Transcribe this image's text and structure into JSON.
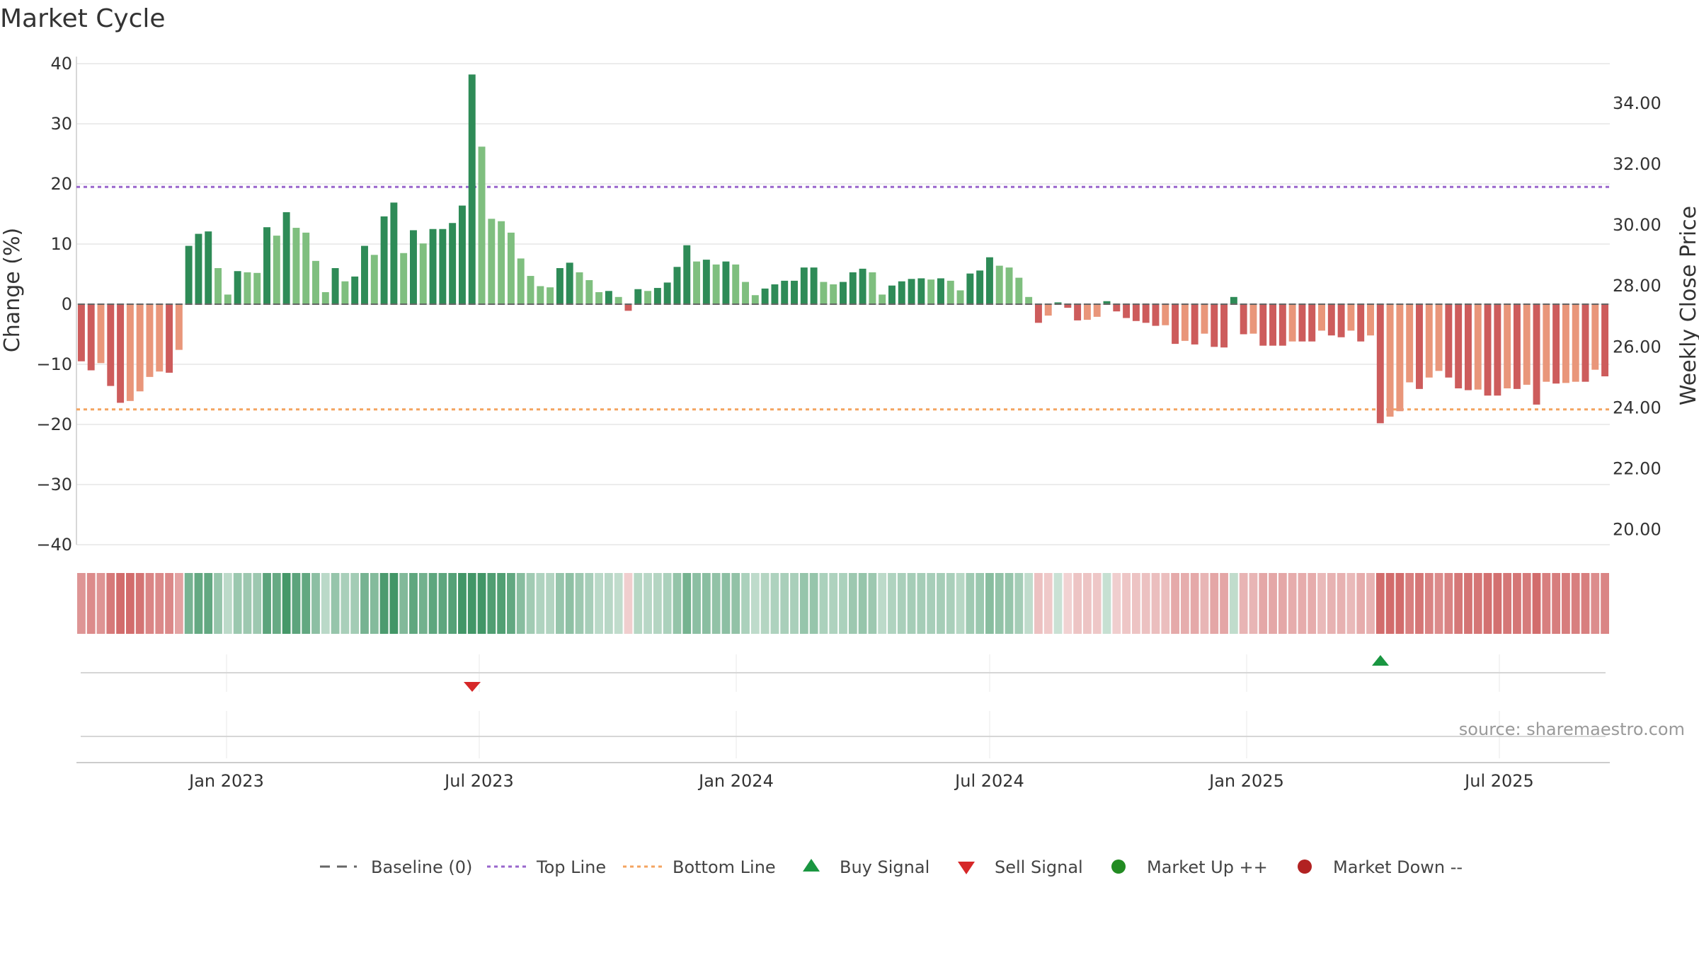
{
  "chart_data": {
    "type": "bar",
    "title": "Market Cycle",
    "ylabel": "Change (%)",
    "y2label": "Weekly Close Price",
    "ylim": [
      -40,
      40
    ],
    "y2lim": [
      19.5,
      35.3
    ],
    "yticks": [
      "40",
      "30",
      "20",
      "10",
      "0",
      "−10",
      "−20",
      "−30",
      "−40"
    ],
    "y2ticks": [
      "34.00",
      "32.00",
      "30.00",
      "28.00",
      "26.00",
      "24.00",
      "22.00",
      "20.00"
    ],
    "xticks": [
      "Jan 2023",
      "Jul 2023",
      "Jan 2024",
      "Jul 2024",
      "Jan 2025",
      "Jul 2025"
    ],
    "grid": true,
    "top_line": 19.5,
    "bottom_line": -17.5,
    "baseline": 0,
    "bar_colors": {
      "up_strong": "#2e8b57",
      "up_weak": "#7fbf7f",
      "down_strong": "#cd5c5c",
      "down_weak": "#e9967a"
    },
    "values": [
      -9.5,
      -11,
      -9.8,
      -13.6,
      -16.4,
      -16.1,
      -14.5,
      -12.1,
      -11.2,
      -11.4,
      -7.6,
      9.7,
      11.7,
      12.1,
      6,
      1.6,
      5.5,
      5.3,
      5.2,
      12.8,
      11.4,
      15.3,
      12.7,
      11.9,
      7.2,
      2,
      6,
      3.8,
      4.6,
      9.7,
      8.2,
      14.6,
      16.9,
      8.5,
      12.3,
      10.1,
      12.5,
      12.5,
      13.5,
      16.4,
      38.2,
      26.2,
      14.2,
      13.8,
      11.9,
      7.6,
      4.7,
      3,
      2.8,
      6,
      6.9,
      5.3,
      4,
      2,
      2.2,
      1.2,
      -1.1,
      2.5,
      2.2,
      2.7,
      3.6,
      6.2,
      9.8,
      7.1,
      7.4,
      6.6,
      7.1,
      6.6,
      3.7,
      1.5,
      2.6,
      3.3,
      3.9,
      3.9,
      6.1,
      6.1,
      3.7,
      3.3,
      3.7,
      5.3,
      5.9,
      5.3,
      1.6,
      3.1,
      3.8,
      4.2,
      4.3,
      4.1,
      4.3,
      3.9,
      2.3,
      5.1,
      5.6,
      7.8,
      6.4,
      6.1,
      4.4,
      1.2,
      -3.1,
      -1.9,
      0.3,
      -0.6,
      -2.7,
      -2.6,
      -2.1,
      0.5,
      -1.2,
      -2.3,
      -2.8,
      -3.1,
      -3.6,
      -3.5,
      -6.6,
      -6.1,
      -6.7,
      -4.9,
      -7.1,
      -7.2,
      1.2,
      -5,
      -4.9,
      -6.9,
      -6.9,
      -6.9,
      -6.2,
      -6.2,
      -6.2,
      -4.4,
      -5.2,
      -5.5,
      -4.4,
      -6.2,
      -5.2,
      -19.8,
      -18.7,
      -17.8,
      -13,
      -14.1,
      -12.2,
      -11.1,
      -12.2,
      -14,
      -14.3,
      -14.2,
      -15.2,
      -15.2,
      -14,
      -14.1,
      -13.4,
      -16.7,
      -12.9,
      -13.2,
      -13.1,
      -12.9,
      -12.9,
      -10.9,
      -12
    ],
    "signals": [
      {
        "type": "Sell Signal",
        "date": "Jul 2023"
      },
      {
        "type": "Buy Signal",
        "date": "Apr 2025"
      }
    ],
    "legend": [
      "Baseline (0)",
      "Top Line",
      "Bottom Line",
      "Buy Signal",
      "Sell Signal",
      "Market Up ++",
      "Market Down --"
    ],
    "legend_placement": "bottom-center",
    "source": "source: sharemaestro.com"
  },
  "colors": {
    "up_strong": "#2e8b57",
    "up_weak": "#7fbf7f",
    "down_strong": "#cd5c5c",
    "down_weak": "#e9967a",
    "top_line": "#9966cc",
    "bottom_line": "#f4a460",
    "buy": "#1a9641",
    "sell": "#d62728",
    "market_up": "#228b22",
    "market_down": "#b22222"
  }
}
